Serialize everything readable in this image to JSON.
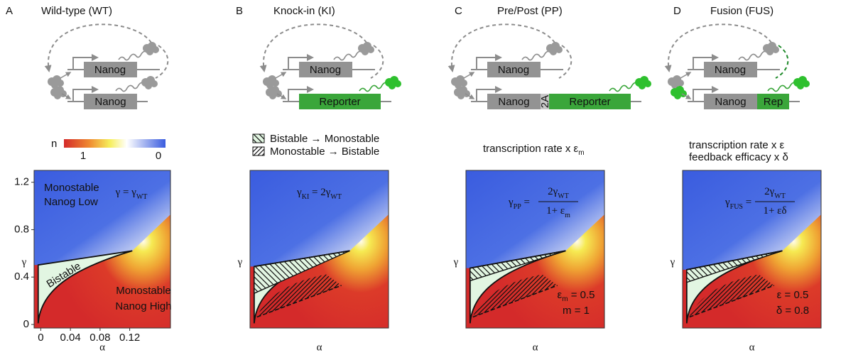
{
  "panels": [
    {
      "letter": "A",
      "title": "Wild-type (WT)",
      "genes": [
        "Nanog",
        "Nanog"
      ],
      "colorbar": {
        "label": "n",
        "ticks": [
          "1",
          "0"
        ]
      },
      "plot": {
        "y_label": "γ",
        "x_label": "α",
        "yticks": [
          0,
          0.4,
          0.8,
          1.2
        ],
        "xticks": [
          0,
          0.04,
          0.08,
          0.12
        ],
        "xlim": [
          -0.009,
          0.175
        ],
        "ylim": [
          -0.03,
          1.3
        ],
        "regions": [
          [
            "Monostable",
            "Nanog Low"
          ],
          [
            "Bistable"
          ],
          [
            "Monostable",
            "Nanog High"
          ]
        ],
        "equation": {
          "lhs": [
            {
              "text": "γ = γ"
            },
            {
              "sub": "WT"
            }
          ]
        }
      }
    },
    {
      "letter": "B",
      "title": "Knock-in (KI)",
      "genes": [
        "Nanog",
        "Reporter"
      ],
      "hatch_legend": [
        "Bistable → Monostable",
        "Monostable → Bistable"
      ],
      "plot": {
        "y_label": "γ",
        "x_label": "α",
        "equation": {
          "lhs": [
            {
              "text": "γ"
            },
            {
              "sub": "KI"
            },
            {
              "text": " = 2γ"
            },
            {
              "sub": "WT"
            }
          ]
        }
      }
    },
    {
      "letter": "C",
      "title": "Pre/Post (PP)",
      "genes": [
        "Nanog",
        "Nanog",
        "2A",
        "Reporter"
      ],
      "caption": [
        [
          {
            "text": "transcription rate x ε"
          },
          {
            "sub": "m"
          }
        ]
      ],
      "plot": {
        "y_label": "γ",
        "x_label": "α",
        "equation": {
          "lhs": [
            {
              "text": "γ"
            },
            {
              "sub": "PP"
            },
            {
              "text": " ="
            }
          ],
          "num": [
            {
              "text": "2γ"
            },
            {
              "sub": "WT"
            }
          ],
          "den": [
            {
              "text": "1+ ε"
            },
            {
              "sub": "m"
            }
          ]
        },
        "params": [
          [
            {
              "text": "ε"
            },
            {
              "sub": "m"
            },
            {
              "text": " = 0.5"
            }
          ],
          [
            {
              "text": "m = 1"
            }
          ]
        ]
      }
    },
    {
      "letter": "D",
      "title": "Fusion (FUS)",
      "genes": [
        "Nanog",
        "Nanog",
        "Rep"
      ],
      "caption": [
        [
          {
            "text": "transcription rate x ε"
          }
        ],
        [
          {
            "text": "feedback efficacy x δ"
          }
        ]
      ],
      "plot": {
        "y_label": "γ",
        "x_label": "α",
        "equation": {
          "lhs": [
            {
              "text": "γ"
            },
            {
              "sub": "FUS"
            },
            {
              "text": " ="
            }
          ],
          "num": [
            {
              "text": "2γ"
            },
            {
              "sub": "WT"
            }
          ],
          "den": [
            {
              "text": "1+ εδ"
            }
          ]
        },
        "params": [
          [
            {
              "text": "ε = 0.5"
            }
          ],
          [
            {
              "text": "δ = 0.8"
            }
          ]
        ]
      }
    }
  ]
}
